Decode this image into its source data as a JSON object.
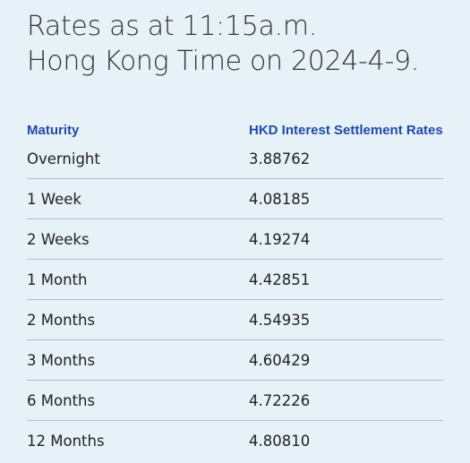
{
  "header": {
    "line1": "Rates as at 11:15a.m.",
    "line2": "Hong Kong Time on 2024-4-9."
  },
  "table": {
    "columns": [
      "Maturity",
      "HKD Interest Settlement Rates"
    ],
    "rows": [
      {
        "maturity": "Overnight",
        "rate": "3.88762"
      },
      {
        "maturity": "1 Week",
        "rate": "4.08185"
      },
      {
        "maturity": "2 Weeks",
        "rate": "4.19274"
      },
      {
        "maturity": "1 Month",
        "rate": "4.42851"
      },
      {
        "maturity": "2 Months",
        "rate": "4.54935"
      },
      {
        "maturity": "3 Months",
        "rate": "4.60429"
      },
      {
        "maturity": "6 Months",
        "rate": "4.72226"
      },
      {
        "maturity": "12 Months",
        "rate": "4.80810"
      }
    ]
  },
  "colors": {
    "background": "#e6f1f8",
    "header_text": "#1f4aa8",
    "divider": "#a7c4d6"
  }
}
